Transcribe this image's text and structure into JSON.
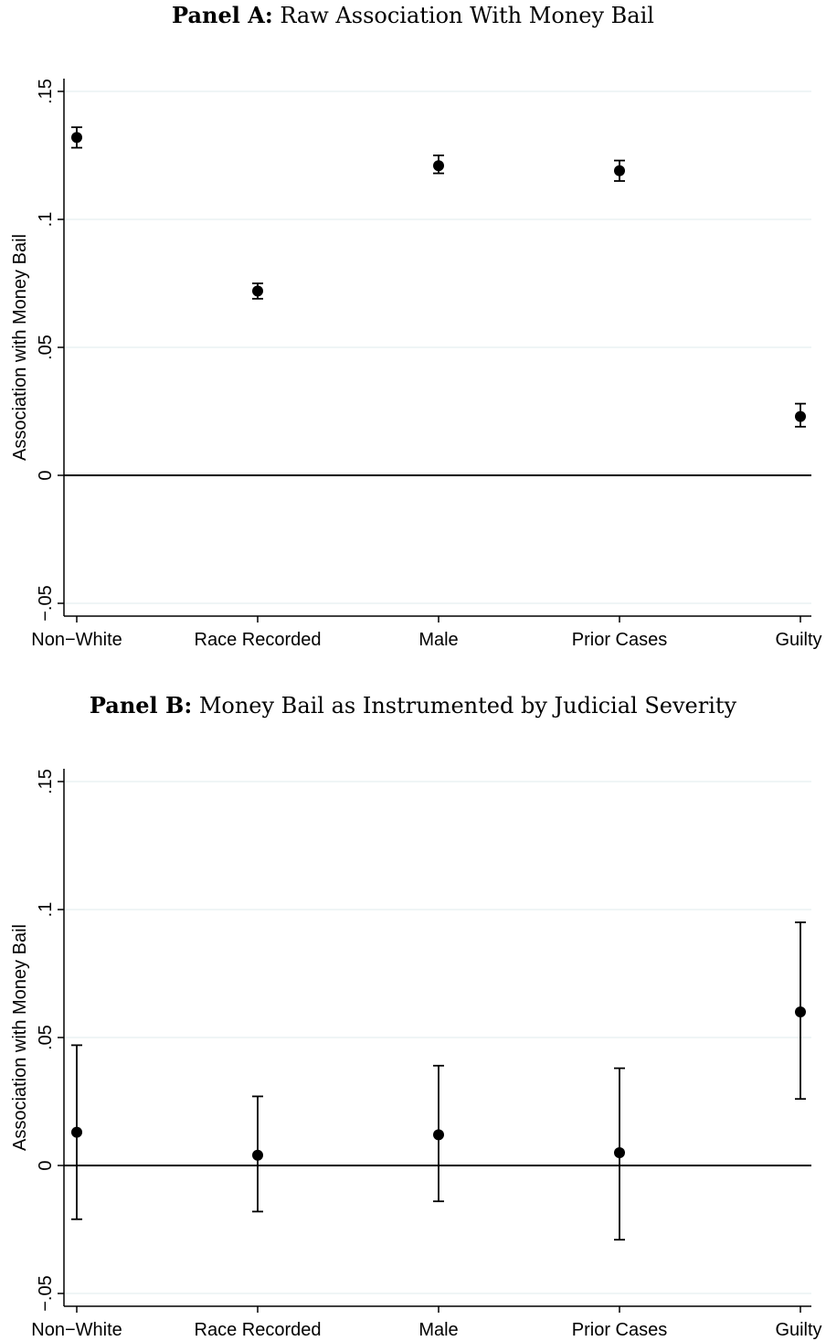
{
  "chart_data": [
    {
      "type": "scatter",
      "panel_label": "Panel A",
      "title": "Raw Association With Money Bail",
      "ylabel": "Association with Money Bail",
      "xlabel": "",
      "ylim": [
        -0.055,
        0.155
      ],
      "yticks": [
        -0.05,
        0,
        0.05,
        0.1,
        0.15
      ],
      "ytick_labels": [
        "−.05",
        "0",
        ".05",
        ".1",
        ".15"
      ],
      "categories": [
        "Non−White",
        "Race Recorded",
        "Male",
        "Prior Cases",
        "Guilty"
      ],
      "values": [
        0.132,
        0.072,
        0.121,
        0.119,
        0.023
      ],
      "ci_low": [
        0.128,
        0.069,
        0.118,
        0.115,
        0.019
      ],
      "ci_high": [
        0.136,
        0.075,
        0.125,
        0.123,
        0.028
      ],
      "reference_line": 0,
      "grid": true
    },
    {
      "type": "scatter",
      "panel_label": "Panel B",
      "title": "Money Bail as Instrumented by Judicial Severity",
      "ylabel": "Association with Money Bail",
      "xlabel": "",
      "ylim": [
        -0.055,
        0.155
      ],
      "yticks": [
        -0.05,
        0,
        0.05,
        0.1,
        0.15
      ],
      "ytick_labels": [
        "−.05",
        "0",
        ".05",
        ".1",
        ".15"
      ],
      "categories": [
        "Non−White",
        "Race Recorded",
        "Male",
        "Prior Cases",
        "Guilty"
      ],
      "values": [
        0.013,
        0.004,
        0.012,
        0.005,
        0.06
      ],
      "ci_low": [
        -0.021,
        -0.018,
        -0.014,
        -0.029,
        0.026
      ],
      "ci_high": [
        0.047,
        0.027,
        0.039,
        0.038,
        0.095
      ],
      "reference_line": 0,
      "grid": true
    }
  ]
}
